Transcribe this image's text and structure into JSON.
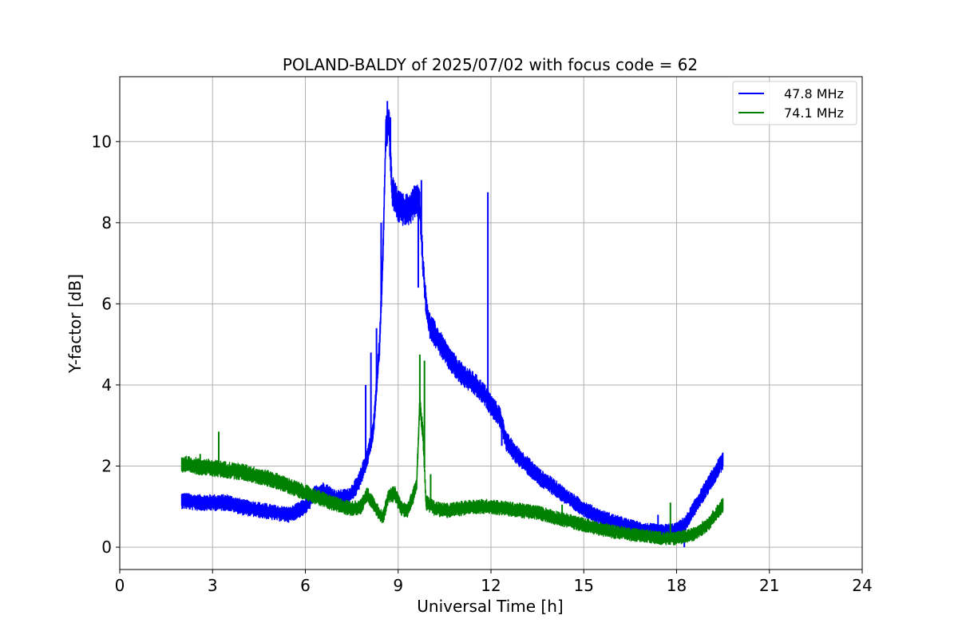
{
  "chart_data": {
    "type": "line",
    "title": "POLAND-BALDY of 2025/07/02 with focus code = 62",
    "xlabel": "Universal Time [h]",
    "ylabel": "Y-factor [dB]",
    "xlim": [
      0,
      24
    ],
    "ylim": [
      -0.55,
      11.6
    ],
    "xticks": [
      0,
      3,
      6,
      9,
      12,
      15,
      18,
      21,
      24
    ],
    "yticks": [
      0,
      2,
      4,
      6,
      8,
      10
    ],
    "xtick_labels": [
      "0",
      "3",
      "6",
      "9",
      "12",
      "15",
      "18",
      "21",
      "24"
    ],
    "ytick_labels": [
      "0",
      "2",
      "4",
      "6",
      "8",
      "10"
    ],
    "grid": true,
    "legend_position": "top-right",
    "series": [
      {
        "name": "47.8 MHz",
        "color": "#0000ff",
        "band_width": 0.28,
        "x": [
          2.0,
          2.5,
          3.0,
          3.5,
          4.0,
          4.5,
          5.0,
          5.5,
          6.0,
          6.3,
          6.6,
          7.0,
          7.4,
          7.7,
          8.0,
          8.2,
          8.4,
          8.5,
          8.6,
          8.7,
          8.8,
          8.9,
          9.0,
          9.2,
          9.4,
          9.5,
          9.6,
          9.7,
          9.8,
          9.9,
          10.0,
          10.3,
          10.6,
          11.0,
          11.5,
          11.85,
          12.0,
          12.3,
          12.5,
          12.8,
          13.2,
          13.6,
          14.0,
          14.5,
          15.0,
          15.5,
          16.0,
          16.5,
          17.0,
          17.5,
          18.0,
          18.3,
          18.6,
          19.0,
          19.5
        ],
        "y": [
          1.15,
          1.1,
          1.1,
          1.1,
          0.98,
          0.92,
          0.85,
          0.8,
          1.0,
          1.3,
          1.4,
          1.2,
          1.25,
          1.55,
          2.2,
          2.9,
          5.0,
          7.0,
          10.2,
          10.5,
          8.8,
          8.6,
          8.4,
          8.3,
          8.35,
          8.5,
          8.6,
          8.4,
          7.0,
          6.0,
          5.5,
          5.1,
          4.7,
          4.3,
          4.0,
          3.7,
          3.5,
          3.2,
          2.6,
          2.3,
          2.0,
          1.7,
          1.5,
          1.2,
          0.95,
          0.75,
          0.62,
          0.5,
          0.42,
          0.38,
          0.42,
          0.6,
          1.0,
          1.5,
          2.15
        ],
        "spikes": [
          {
            "x": 7.95,
            "y": 4.0
          },
          {
            "x": 8.12,
            "y": 4.8
          },
          {
            "x": 8.3,
            "y": 5.4
          },
          {
            "x": 8.45,
            "y": 8.0
          },
          {
            "x": 8.65,
            "y": 11.0
          },
          {
            "x": 8.75,
            "y": 10.6
          },
          {
            "x": 9.55,
            "y": 8.9
          },
          {
            "x": 9.75,
            "y": 9.05
          },
          {
            "x": 9.65,
            "y": 6.4
          },
          {
            "x": 11.9,
            "y": 8.75
          },
          {
            "x": 12.35,
            "y": 2.5
          },
          {
            "x": 17.4,
            "y": 0.8
          },
          {
            "x": 18.25,
            "y": 0.0
          }
        ]
      },
      {
        "name": "74.1 MHz",
        "color": "#008000",
        "band_width": 0.26,
        "x": [
          2.0,
          2.5,
          3.0,
          3.5,
          4.0,
          4.5,
          5.0,
          5.5,
          6.0,
          6.5,
          7.0,
          7.5,
          7.8,
          8.0,
          8.3,
          8.5,
          8.7,
          8.9,
          9.1,
          9.3,
          9.5,
          9.6,
          9.7,
          9.8,
          9.9,
          10.2,
          10.6,
          11.0,
          11.5,
          12.0,
          12.5,
          13.0,
          13.5,
          14.0,
          14.5,
          15.0,
          15.5,
          16.0,
          16.5,
          17.0,
          17.5,
          18.0,
          18.5,
          19.0,
          19.5
        ],
        "y": [
          2.05,
          2.0,
          1.95,
          1.9,
          1.85,
          1.75,
          1.65,
          1.5,
          1.35,
          1.2,
          1.05,
          0.95,
          1.0,
          1.3,
          0.95,
          0.7,
          1.3,
          1.3,
          0.95,
          0.9,
          1.3,
          1.6,
          3.6,
          2.8,
          1.1,
          0.95,
          0.9,
          0.95,
          1.0,
          1.0,
          0.95,
          0.9,
          0.85,
          0.75,
          0.65,
          0.55,
          0.45,
          0.38,
          0.32,
          0.28,
          0.22,
          0.22,
          0.3,
          0.55,
          1.05
        ],
        "spikes": [
          {
            "x": 3.2,
            "y": 2.85
          },
          {
            "x": 2.6,
            "y": 2.3
          },
          {
            "x": 9.7,
            "y": 4.75
          },
          {
            "x": 9.85,
            "y": 4.6
          },
          {
            "x": 10.05,
            "y": 1.8
          },
          {
            "x": 17.8,
            "y": 1.1
          },
          {
            "x": 14.3,
            "y": 1.05
          }
        ]
      }
    ]
  }
}
